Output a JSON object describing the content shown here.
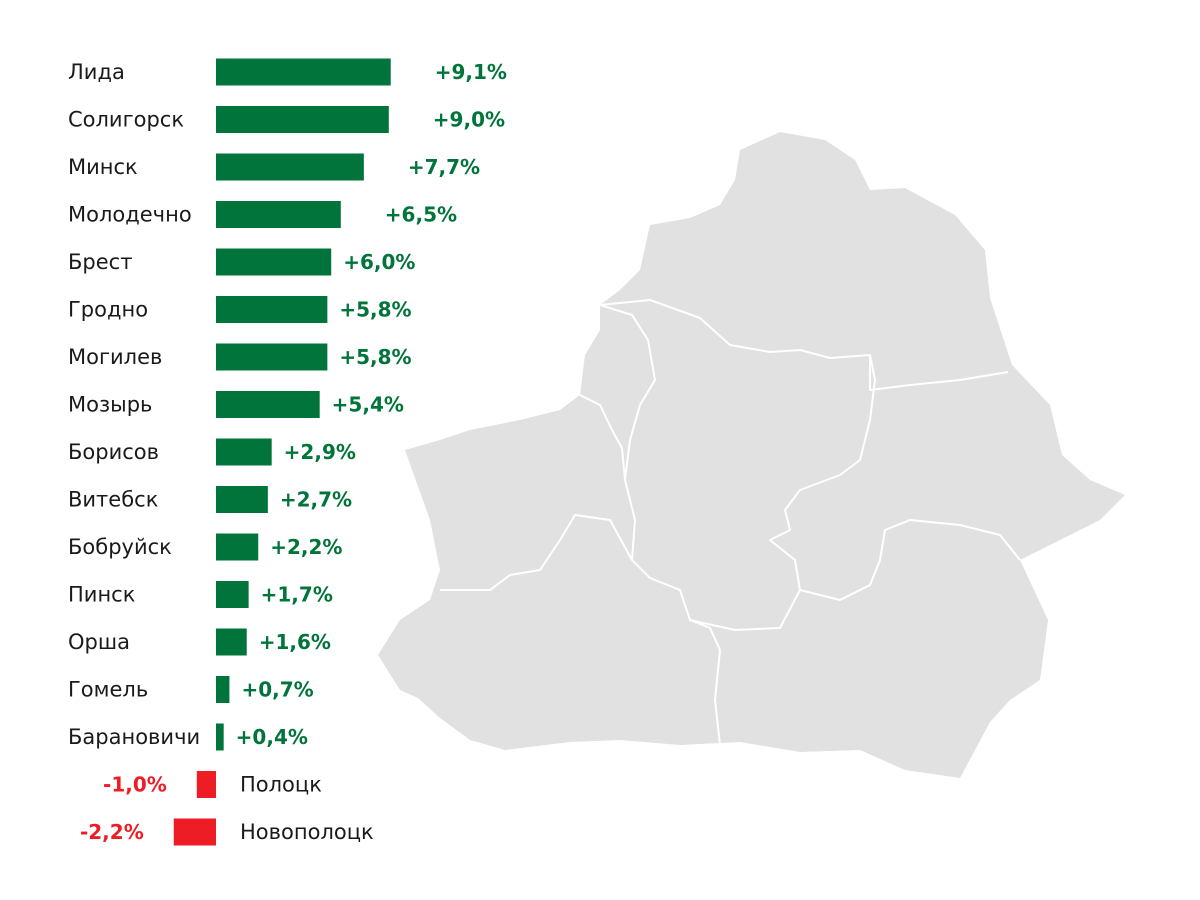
{
  "chart_data": {
    "type": "bar",
    "orientation": "horizontal",
    "unit": "%",
    "categories": [
      "Лида",
      "Солигорск",
      "Минск",
      "Молодечно",
      "Брест",
      "Гродно",
      "Могилев",
      "Мозырь",
      "Борисов",
      "Витебск",
      "Бобруйск",
      "Пинск",
      "Орша",
      "Гомель",
      "Барановичи",
      "Полоцк",
      "Новополоцк"
    ],
    "values": [
      9.1,
      9.0,
      7.7,
      6.5,
      6.0,
      5.8,
      5.8,
      5.4,
      2.9,
      2.7,
      2.2,
      1.7,
      1.6,
      0.7,
      0.4,
      -1.0,
      -2.2
    ],
    "value_labels": [
      "+9,1%",
      "+9,0%",
      "+7,7%",
      "+6,5%",
      "+6,0%",
      "+5,8%",
      "+5,8%",
      "+5,4%",
      "+2,9%",
      "+2,7%",
      "+2,2%",
      "+1,7%",
      "+1,6%",
      "+0,7%",
      "+0,4%",
      "-1,0%",
      "-2,2%"
    ],
    "colors": {
      "positive": "#00743a",
      "negative": "#ee1c25",
      "map_fill": "#e1e1e1",
      "map_borders": "#ffffff"
    },
    "background_map": "Belarus regions",
    "grid": false,
    "legend": "none"
  }
}
